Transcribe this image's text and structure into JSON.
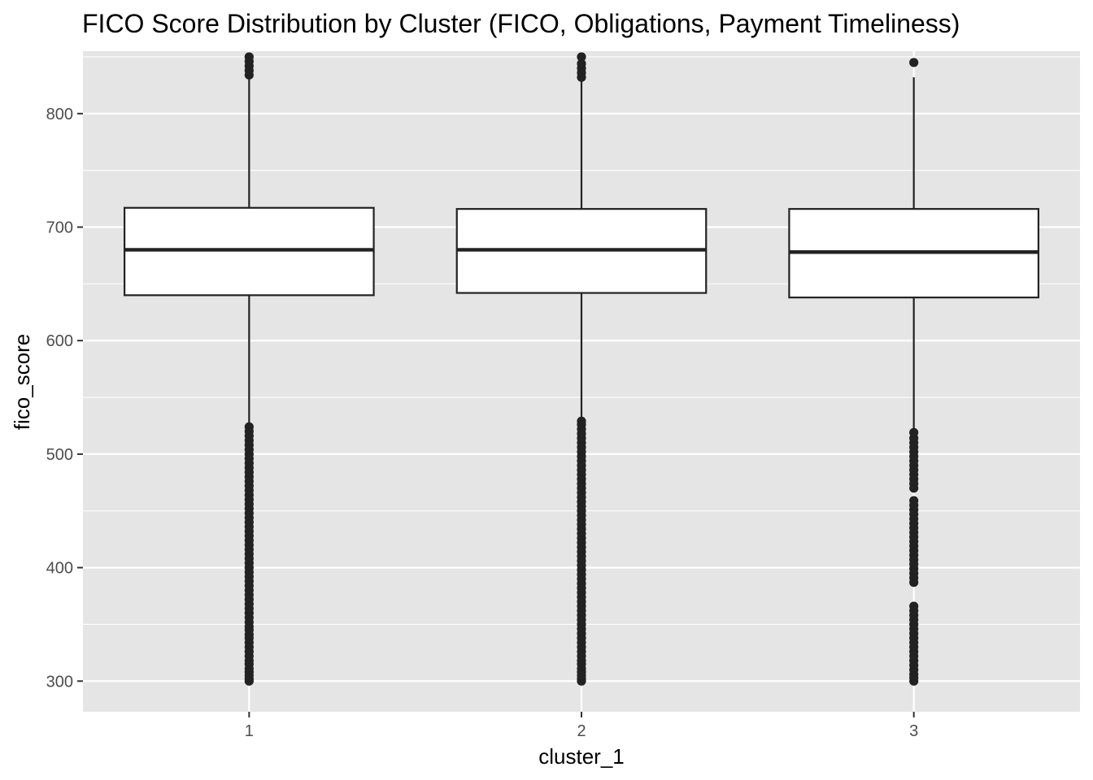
{
  "chart_data": {
    "type": "boxplot",
    "title": "FICO Score Distribution by Cluster (FICO, Obligations, Payment Timeliness)",
    "xlabel": "cluster_1",
    "ylabel": "fico_score",
    "categories": [
      "1",
      "2",
      "3"
    ],
    "ylim": [
      273,
      855
    ],
    "yticks": [
      300,
      400,
      500,
      600,
      700,
      800
    ],
    "grid": true,
    "legend": "none",
    "colors": {
      "panel": "#e5e5e5",
      "grid": "#ffffff",
      "box_fill": "#ffffff",
      "line": "#222222",
      "tick": "#333333"
    },
    "boxes": [
      {
        "category": "1",
        "whisker_low": 527,
        "q1": 640,
        "median": 680,
        "q3": 717,
        "whisker_high": 831,
        "outliers": [
          300,
          302,
          305,
          308,
          311,
          315,
          318,
          322,
          326,
          330,
          334,
          338,
          341,
          345,
          348,
          352,
          356,
          360,
          364,
          368,
          372,
          376,
          380,
          384,
          388,
          392,
          396,
          400,
          404,
          408,
          412,
          416,
          420,
          424,
          428,
          432,
          436,
          440,
          444,
          448,
          452,
          456,
          460,
          464,
          468,
          472,
          476,
          480,
          484,
          488,
          492,
          496,
          500,
          504,
          508,
          512,
          516,
          520,
          524,
          834,
          838,
          842,
          846,
          850
        ]
      },
      {
        "category": "2",
        "whisker_low": 531,
        "q1": 642,
        "median": 680,
        "q3": 716,
        "whisker_high": 829,
        "outliers": [
          300,
          302,
          305,
          308,
          311,
          315,
          318,
          322,
          326,
          330,
          334,
          338,
          342,
          346,
          350,
          354,
          358,
          362,
          366,
          370,
          374,
          378,
          382,
          386,
          390,
          394,
          398,
          402,
          406,
          410,
          414,
          418,
          422,
          426,
          430,
          434,
          438,
          442,
          446,
          450,
          454,
          458,
          462,
          466,
          470,
          474,
          478,
          482,
          486,
          490,
          494,
          498,
          502,
          506,
          510,
          514,
          518,
          522,
          526,
          529,
          832,
          836,
          840,
          844,
          850
        ]
      },
      {
        "category": "3",
        "whisker_low": 522,
        "q1": 638,
        "median": 678,
        "q3": 716,
        "whisker_high": 832,
        "outliers": [
          300,
          303,
          306,
          310,
          314,
          318,
          322,
          326,
          330,
          334,
          338,
          342,
          346,
          350,
          354,
          358,
          362,
          366,
          387,
          391,
          395,
          399,
          403,
          407,
          411,
          415,
          419,
          423,
          427,
          431,
          435,
          439,
          443,
          447,
          451,
          455,
          459,
          470,
          474,
          478,
          482,
          486,
          490,
          494,
          498,
          502,
          506,
          510,
          514,
          519,
          845
        ]
      }
    ]
  }
}
